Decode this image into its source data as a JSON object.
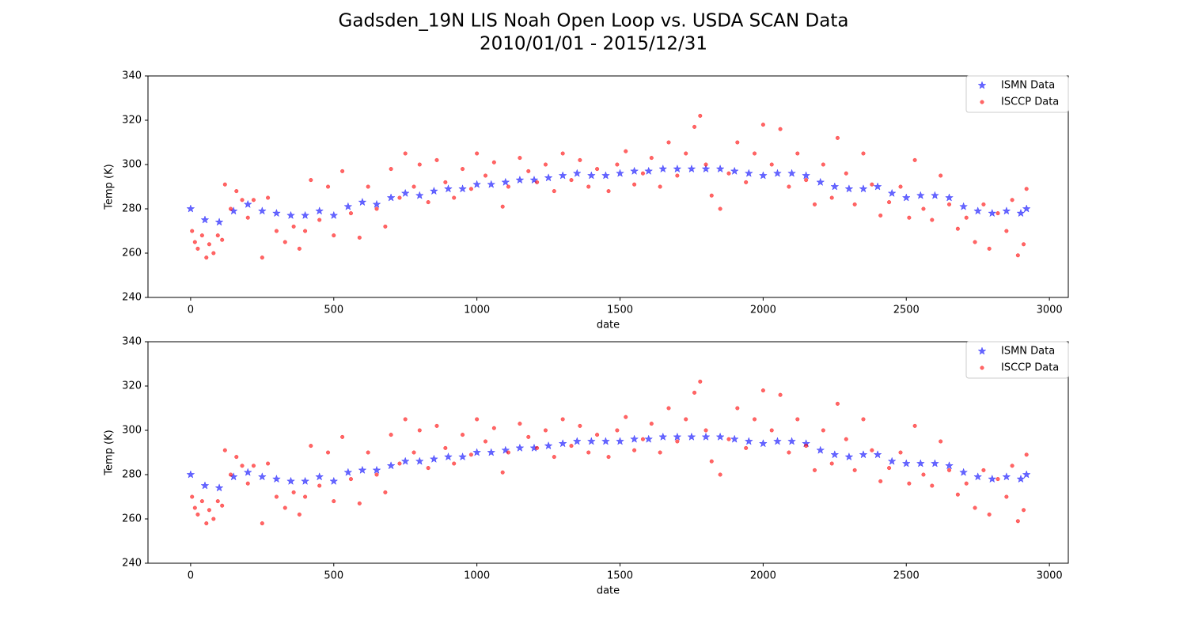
{
  "title": "Gadsden_19N LIS Noah Open Loop vs. USDA SCAN Data",
  "subtitle": "2010/01/01 - 2015/12/31",
  "chart_data": [
    {
      "type": "scatter",
      "xlabel": "date",
      "ylabel": "Temp (K)",
      "xlim": [
        -149,
        3066
      ],
      "ylim": [
        240,
        340
      ],
      "xticks": [
        0,
        500,
        1000,
        1500,
        2000,
        2500,
        3000
      ],
      "yticks": [
        240,
        260,
        280,
        300,
        320,
        340
      ],
      "legend": "upper right",
      "series": [
        {
          "name": "ISMN Data",
          "color": "#0000ff",
          "marker": "star",
          "x": [
            0,
            50,
            100,
            150,
            200,
            250,
            300,
            350,
            400,
            450,
            500,
            550,
            600,
            650,
            700,
            750,
            800,
            850,
            900,
            950,
            1000,
            1050,
            1100,
            1150,
            1200,
            1250,
            1300,
            1350,
            1400,
            1450,
            1500,
            1550,
            1600,
            1650,
            1700,
            1750,
            1800,
            1850,
            1900,
            1950,
            2000,
            2050,
            2100,
            2150,
            2200,
            2250,
            2300,
            2350,
            2400,
            2450,
            2500,
            2550,
            2600,
            2650,
            2700,
            2750,
            2800,
            2850,
            2900,
            2920
          ],
          "values": [
            280,
            275,
            274,
            279,
            282,
            279,
            278,
            277,
            277,
            279,
            277,
            281,
            283,
            282,
            285,
            287,
            286,
            288,
            289,
            289,
            291,
            291,
            292,
            293,
            293,
            294,
            295,
            296,
            295,
            295,
            296,
            297,
            297,
            298,
            298,
            298,
            298,
            298,
            297,
            296,
            295,
            296,
            296,
            295,
            292,
            290,
            289,
            289,
            290,
            287,
            285,
            286,
            286,
            285,
            281,
            279,
            278,
            279,
            278,
            280
          ]
        },
        {
          "name": "ISCCP Data",
          "color": "#ff0000",
          "marker": "circle",
          "x": [
            5,
            15,
            25,
            40,
            55,
            65,
            80,
            95,
            110,
            120,
            140,
            160,
            180,
            200,
            220,
            250,
            270,
            300,
            330,
            360,
            380,
            400,
            420,
            450,
            480,
            500,
            530,
            560,
            590,
            620,
            650,
            680,
            700,
            730,
            750,
            780,
            800,
            830,
            860,
            890,
            920,
            950,
            980,
            1000,
            1030,
            1060,
            1090,
            1110,
            1150,
            1180,
            1210,
            1240,
            1270,
            1300,
            1330,
            1360,
            1390,
            1420,
            1460,
            1490,
            1520,
            1550,
            1580,
            1610,
            1640,
            1670,
            1700,
            1730,
            1760,
            1780,
            1800,
            1820,
            1850,
            1880,
            1910,
            1940,
            1970,
            2000,
            2030,
            2060,
            2090,
            2120,
            2150,
            2180,
            2210,
            2240,
            2260,
            2290,
            2320,
            2350,
            2380,
            2410,
            2440,
            2480,
            2510,
            2530,
            2560,
            2590,
            2620,
            2650,
            2680,
            2710,
            2740,
            2770,
            2790,
            2820,
            2850,
            2870,
            2890,
            2910,
            2920
          ],
          "values": [
            270,
            265,
            262,
            268,
            258,
            264,
            260,
            268,
            266,
            291,
            280,
            288,
            284,
            276,
            284,
            258,
            285,
            270,
            265,
            272,
            262,
            270,
            293,
            275,
            290,
            268,
            297,
            278,
            267,
            290,
            280,
            272,
            298,
            285,
            305,
            290,
            300,
            283,
            302,
            292,
            285,
            298,
            289,
            305,
            295,
            301,
            281,
            290,
            303,
            297,
            292,
            300,
            288,
            305,
            293,
            302,
            290,
            298,
            288,
            300,
            306,
            291,
            296,
            303,
            290,
            310,
            295,
            305,
            317,
            322,
            300,
            286,
            280,
            296,
            310,
            292,
            305,
            318,
            300,
            316,
            290,
            305,
            293,
            282,
            300,
            285,
            312,
            296,
            282,
            305,
            291,
            277,
            283,
            290,
            276,
            302,
            280,
            275,
            295,
            282,
            271,
            276,
            265,
            282,
            262,
            278,
            270,
            284,
            259,
            264,
            289
          ]
        }
      ]
    },
    {
      "type": "scatter",
      "xlabel": "date",
      "ylabel": "Temp (K)",
      "xlim": [
        -149,
        3066
      ],
      "ylim": [
        240,
        340
      ],
      "xticks": [
        0,
        500,
        1000,
        1500,
        2000,
        2500,
        3000
      ],
      "yticks": [
        240,
        260,
        280,
        300,
        320,
        340
      ],
      "legend": "upper right",
      "series": [
        {
          "name": "ISMN Data",
          "color": "#0000ff",
          "marker": "star",
          "x": [
            0,
            50,
            100,
            150,
            200,
            250,
            300,
            350,
            400,
            450,
            500,
            550,
            600,
            650,
            700,
            750,
            800,
            850,
            900,
            950,
            1000,
            1050,
            1100,
            1150,
            1200,
            1250,
            1300,
            1350,
            1400,
            1450,
            1500,
            1550,
            1600,
            1650,
            1700,
            1750,
            1800,
            1850,
            1900,
            1950,
            2000,
            2050,
            2100,
            2150,
            2200,
            2250,
            2300,
            2350,
            2400,
            2450,
            2500,
            2550,
            2600,
            2650,
            2700,
            2750,
            2800,
            2850,
            2900,
            2920
          ],
          "values": [
            280,
            275,
            274,
            279,
            281,
            279,
            278,
            277,
            277,
            279,
            277,
            281,
            282,
            282,
            284,
            286,
            286,
            287,
            288,
            288,
            290,
            290,
            291,
            292,
            292,
            293,
            294,
            295,
            295,
            295,
            295,
            296,
            296,
            297,
            297,
            297,
            297,
            297,
            296,
            295,
            294,
            295,
            295,
            294,
            291,
            289,
            288,
            289,
            289,
            286,
            285,
            285,
            285,
            284,
            281,
            279,
            278,
            279,
            278,
            280
          ]
        },
        {
          "name": "ISCCP Data",
          "color": "#ff0000",
          "marker": "circle",
          "x": [
            5,
            15,
            25,
            40,
            55,
            65,
            80,
            95,
            110,
            120,
            140,
            160,
            180,
            200,
            220,
            250,
            270,
            300,
            330,
            360,
            380,
            400,
            420,
            450,
            480,
            500,
            530,
            560,
            590,
            620,
            650,
            680,
            700,
            730,
            750,
            780,
            800,
            830,
            860,
            890,
            920,
            950,
            980,
            1000,
            1030,
            1060,
            1090,
            1110,
            1150,
            1180,
            1210,
            1240,
            1270,
            1300,
            1330,
            1360,
            1390,
            1420,
            1460,
            1490,
            1520,
            1550,
            1580,
            1610,
            1640,
            1670,
            1700,
            1730,
            1760,
            1780,
            1800,
            1820,
            1850,
            1880,
            1910,
            1940,
            1970,
            2000,
            2030,
            2060,
            2090,
            2120,
            2150,
            2180,
            2210,
            2240,
            2260,
            2290,
            2320,
            2350,
            2380,
            2410,
            2440,
            2480,
            2510,
            2530,
            2560,
            2590,
            2620,
            2650,
            2680,
            2710,
            2740,
            2770,
            2790,
            2820,
            2850,
            2870,
            2890,
            2910,
            2920
          ],
          "values": [
            270,
            265,
            262,
            268,
            258,
            264,
            260,
            268,
            266,
            291,
            280,
            288,
            284,
            276,
            284,
            258,
            285,
            270,
            265,
            272,
            262,
            270,
            293,
            275,
            290,
            268,
            297,
            278,
            267,
            290,
            280,
            272,
            298,
            285,
            305,
            290,
            300,
            283,
            302,
            292,
            285,
            298,
            289,
            305,
            295,
            301,
            281,
            290,
            303,
            297,
            292,
            300,
            288,
            305,
            293,
            302,
            290,
            298,
            288,
            300,
            306,
            291,
            296,
            303,
            290,
            310,
            295,
            305,
            317,
            322,
            300,
            286,
            280,
            296,
            310,
            292,
            305,
            318,
            300,
            316,
            290,
            305,
            293,
            282,
            300,
            285,
            312,
            296,
            282,
            305,
            291,
            277,
            283,
            290,
            276,
            302,
            280,
            275,
            295,
            282,
            271,
            276,
            265,
            282,
            262,
            278,
            270,
            284,
            259,
            264,
            289
          ]
        }
      ]
    }
  ]
}
